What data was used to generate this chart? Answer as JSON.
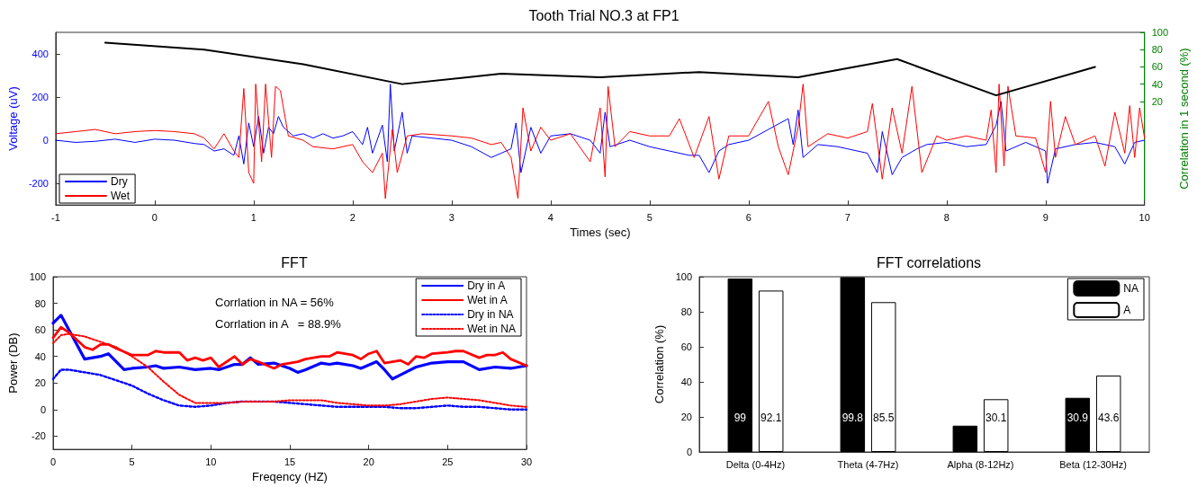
{
  "chart_data": [
    {
      "type": "line",
      "title": "Tooth Trial NO.3 at FP1",
      "xlabel": "Times (sec)",
      "ylabel": "Voltage (uV)",
      "y2label": "Correlation in 1 second (%)",
      "xlim": [
        -1,
        10
      ],
      "xticks": [
        -1,
        0,
        1,
        2,
        3,
        4,
        5,
        6,
        7,
        8,
        9,
        10
      ],
      "ylim": [
        -300,
        500
      ],
      "yticks": [
        -200,
        0,
        200,
        400
      ],
      "y2lim": [
        -100,
        100
      ],
      "y2ticks": [
        20,
        40,
        60,
        80,
        100
      ],
      "legend": "bottom left",
      "grid": false,
      "marker": "none",
      "series": [
        {
          "name": "Dry",
          "color": "#0000ff",
          "x": [
            -1,
            -0.8,
            -0.6,
            -0.4,
            -0.2,
            0,
            0.2,
            0.4,
            0.5,
            0.6,
            0.7,
            0.8,
            0.85,
            0.9,
            0.95,
            1.0,
            1.05,
            1.1,
            1.15,
            1.2,
            1.25,
            1.3,
            1.4,
            1.5,
            1.6,
            1.7,
            1.8,
            1.9,
            2.0,
            2.1,
            2.15,
            2.2,
            2.3,
            2.35,
            2.38,
            2.42,
            2.5,
            2.55,
            2.6,
            2.8,
            3.0,
            3.2,
            3.4,
            3.5,
            3.6,
            3.65,
            3.7,
            3.8,
            3.9,
            4.0,
            4.2,
            4.4,
            4.5,
            4.55,
            4.6,
            4.8,
            5.0,
            5.2,
            5.4,
            5.5,
            5.6,
            5.7,
            5.8,
            6.0,
            6.2,
            6.4,
            6.45,
            6.5,
            6.55,
            6.7,
            6.9,
            7.0,
            7.2,
            7.3,
            7.35,
            7.45,
            7.55,
            7.7,
            7.8,
            8.0,
            8.2,
            8.4,
            8.5,
            8.55,
            8.6,
            8.8,
            9.0,
            9.02,
            9.1,
            9.3,
            9.5,
            9.7,
            9.8,
            9.9,
            10
          ],
          "values": [
            0,
            -10,
            -5,
            5,
            -10,
            5,
            0,
            -15,
            -20,
            -50,
            -40,
            -70,
            20,
            -110,
            80,
            -30,
            110,
            -60,
            60,
            30,
            110,
            60,
            20,
            30,
            10,
            30,
            10,
            20,
            40,
            -20,
            60,
            -60,
            70,
            -100,
            260,
            -50,
            130,
            -60,
            20,
            10,
            0,
            -30,
            -80,
            -60,
            -40,
            80,
            -150,
            60,
            -60,
            20,
            30,
            0,
            -60,
            130,
            -30,
            0,
            -30,
            -50,
            -70,
            -70,
            -150,
            -50,
            -20,
            0,
            50,
            100,
            -20,
            140,
            -80,
            -20,
            -30,
            -40,
            -60,
            -150,
            40,
            -160,
            -80,
            -40,
            -20,
            -10,
            -30,
            -20,
            70,
            180,
            -50,
            -10,
            -50,
            -200,
            -40,
            -20,
            -10,
            -30,
            -110,
            -10,
            0
          ]
        },
        {
          "name": "Wet",
          "color": "#ff0000",
          "x": [
            -1,
            -0.8,
            -0.6,
            -0.4,
            -0.2,
            0,
            0.2,
            0.4,
            0.5,
            0.6,
            0.7,
            0.8,
            0.85,
            0.9,
            0.95,
            1.0,
            1.02,
            1.08,
            1.12,
            1.18,
            1.22,
            1.27,
            1.35,
            1.5,
            1.6,
            1.8,
            2.0,
            2.1,
            2.2,
            2.3,
            2.33,
            2.4,
            2.45,
            2.55,
            2.7,
            3.0,
            3.2,
            3.4,
            3.5,
            3.6,
            3.67,
            3.72,
            3.8,
            3.9,
            4.0,
            4.2,
            4.4,
            4.5,
            4.55,
            4.58,
            4.65,
            4.8,
            5.0,
            5.2,
            5.3,
            5.45,
            5.6,
            5.7,
            5.8,
            6.0,
            6.2,
            6.3,
            6.4,
            6.5,
            6.55,
            6.6,
            6.8,
            7.0,
            7.2,
            7.25,
            7.35,
            7.45,
            7.55,
            7.65,
            7.75,
            7.9,
            8.0,
            8.2,
            8.4,
            8.45,
            8.5,
            8.53,
            8.58,
            8.62,
            8.7,
            8.9,
            9.0,
            9.05,
            9.1,
            9.2,
            9.3,
            9.5,
            9.6,
            9.7,
            9.8,
            9.85,
            9.9,
            9.95,
            10
          ],
          "values": [
            30,
            40,
            50,
            30,
            40,
            45,
            40,
            30,
            10,
            -40,
            30,
            -50,
            -80,
            240,
            -150,
            -200,
            260,
            -100,
            260,
            -80,
            250,
            230,
            20,
            0,
            -30,
            -40,
            -20,
            -100,
            -150,
            -60,
            -270,
            50,
            -150,
            20,
            30,
            20,
            10,
            -20,
            -10,
            -80,
            -270,
            150,
            -50,
            60,
            0,
            30,
            -100,
            150,
            -170,
            250,
            -30,
            40,
            20,
            20,
            100,
            -80,
            110,
            -180,
            20,
            20,
            180,
            -30,
            -160,
            60,
            260,
            -30,
            30,
            10,
            40,
            170,
            -180,
            150,
            -60,
            250,
            -150,
            20,
            0,
            20,
            0,
            140,
            -150,
            260,
            -120,
            250,
            20,
            10,
            -150,
            180,
            -80,
            110,
            -20,
            20,
            -120,
            130,
            -60,
            160,
            -80,
            150,
            10
          ]
        },
        {
          "color": "#000000",
          "axis": "y2",
          "x": [
            -0.5,
            0.5,
            1.5,
            2.5,
            3.5,
            4.5,
            5.5,
            6.5,
            7.5,
            8.5,
            9.5
          ],
          "values": [
            88,
            80,
            63,
            40,
            52,
            48,
            54,
            48,
            69,
            27,
            60
          ]
        }
      ]
    },
    {
      "type": "line",
      "title": "FFT",
      "xlabel": "Freqency (HZ)",
      "ylabel": "Power (DB)",
      "xlim": [
        0,
        30
      ],
      "xticks": [
        0,
        5,
        10,
        15,
        20,
        25,
        30
      ],
      "ylim": [
        -30,
        100
      ],
      "yticks": [
        -20,
        0,
        20,
        40,
        60,
        80,
        100
      ],
      "legend": "top right",
      "grid": false,
      "marker": "none",
      "annotations": [
        "Corrlation in NA = 56%",
        "Corrlation in A   = 88.9%"
      ],
      "series": [
        {
          "name": "Dry in A",
          "color": "#0000ff",
          "line_style": "solid",
          "x": [
            0,
            0.5,
            1,
            2,
            3,
            3.5,
            4.5,
            5,
            6,
            6.5,
            7,
            8,
            9,
            10,
            10.5,
            11.5,
            12,
            12.5,
            13,
            14,
            15,
            15.5,
            16,
            17,
            17.5,
            18,
            19,
            19.5,
            20.5,
            21,
            21.5,
            22,
            23,
            24,
            25,
            26,
            27,
            28,
            29,
            30
          ],
          "values": [
            65,
            71,
            60,
            38,
            40,
            42,
            30,
            31,
            32,
            33,
            31,
            32,
            30,
            31,
            30,
            34,
            34,
            39,
            34,
            35,
            31,
            28,
            30,
            35,
            34,
            35,
            33,
            31,
            36,
            30,
            23,
            26,
            32,
            35,
            36,
            36,
            30,
            32,
            31,
            33
          ]
        },
        {
          "name": "Wet in A",
          "color": "#ff0000",
          "line_style": "solid",
          "x": [
            0,
            0.5,
            1,
            2,
            2.5,
            3,
            3.5,
            4,
            5,
            6,
            6.5,
            7,
            8,
            8.5,
            9,
            9.5,
            10,
            10.5,
            11.5,
            12,
            12.5,
            13,
            14,
            14.5,
            15.5,
            16,
            17,
            17.5,
            18,
            19,
            19.5,
            20,
            20.5,
            21,
            22,
            22.5,
            23,
            23.5,
            24,
            25,
            25.5,
            26,
            27,
            27.5,
            28,
            28.5,
            29,
            30
          ],
          "values": [
            54,
            62,
            58,
            47,
            45,
            49,
            49,
            46,
            41,
            41,
            44,
            43,
            43,
            37,
            39,
            37,
            39,
            32,
            40,
            34,
            38,
            36,
            31,
            34,
            36,
            38,
            40,
            40,
            43,
            41,
            38,
            42,
            44,
            35,
            37,
            34,
            40,
            39,
            42,
            43,
            44,
            44,
            39,
            41,
            41,
            43,
            38,
            33
          ]
        },
        {
          "name": "Dry in NA",
          "color": "#0000ff",
          "line_style": "dotted",
          "x": [
            0,
            0.5,
            1,
            2,
            3,
            4,
            5,
            6,
            7,
            8,
            9,
            10,
            11,
            12,
            13,
            14,
            15,
            16,
            17,
            18,
            19,
            20,
            21,
            22,
            23,
            24,
            25,
            26,
            27,
            28,
            29,
            30
          ],
          "values": [
            23,
            30,
            30,
            28,
            26,
            22,
            18,
            12,
            7,
            3,
            2,
            3,
            5,
            6,
            6,
            6,
            5,
            4,
            3,
            2,
            2,
            2,
            2,
            1,
            1,
            2,
            3,
            2,
            2,
            1,
            0,
            0
          ]
        },
        {
          "name": "Wet in NA",
          "color": "#ff0000",
          "line_style": "dotted",
          "x": [
            0,
            0.5,
            1,
            2,
            3,
            4,
            5,
            6,
            7,
            8,
            9,
            10,
            11,
            12,
            13,
            14,
            15,
            16,
            17,
            18,
            19,
            20,
            21,
            22,
            23,
            24,
            25,
            26,
            27,
            28,
            29,
            30
          ],
          "values": [
            50,
            56,
            57,
            55,
            51,
            47,
            40,
            32,
            21,
            11,
            5,
            5,
            5,
            6,
            6,
            6,
            7,
            7,
            7,
            5,
            4,
            3,
            3,
            4,
            6,
            8,
            9,
            8,
            7,
            5,
            3,
            2
          ]
        }
      ]
    },
    {
      "type": "bar",
      "title": "FFT correlations",
      "ylabel": "Correlation (%)",
      "categories": [
        "Delta (0-4Hz)",
        "Theta (4-7Hz)",
        "Alpha (8-12Hz)",
        "Beta (12-30Hz)"
      ],
      "ylim": [
        0,
        100
      ],
      "yticks": [
        0,
        20,
        40,
        60,
        80,
        100
      ],
      "legend": "top right",
      "grid": false,
      "series": [
        {
          "name": "NA",
          "color": "#000000",
          "values": [
            99,
            99.8,
            15,
            30.9
          ],
          "value_labels": [
            "99",
            "99.8",
            null,
            "30.9"
          ]
        },
        {
          "name": "A",
          "color": "#ffffff",
          "values": [
            92.1,
            85.5,
            30.1,
            43.6
          ],
          "value_labels": [
            "92.1",
            "85.5",
            "30.1",
            "43.6"
          ]
        }
      ]
    }
  ]
}
